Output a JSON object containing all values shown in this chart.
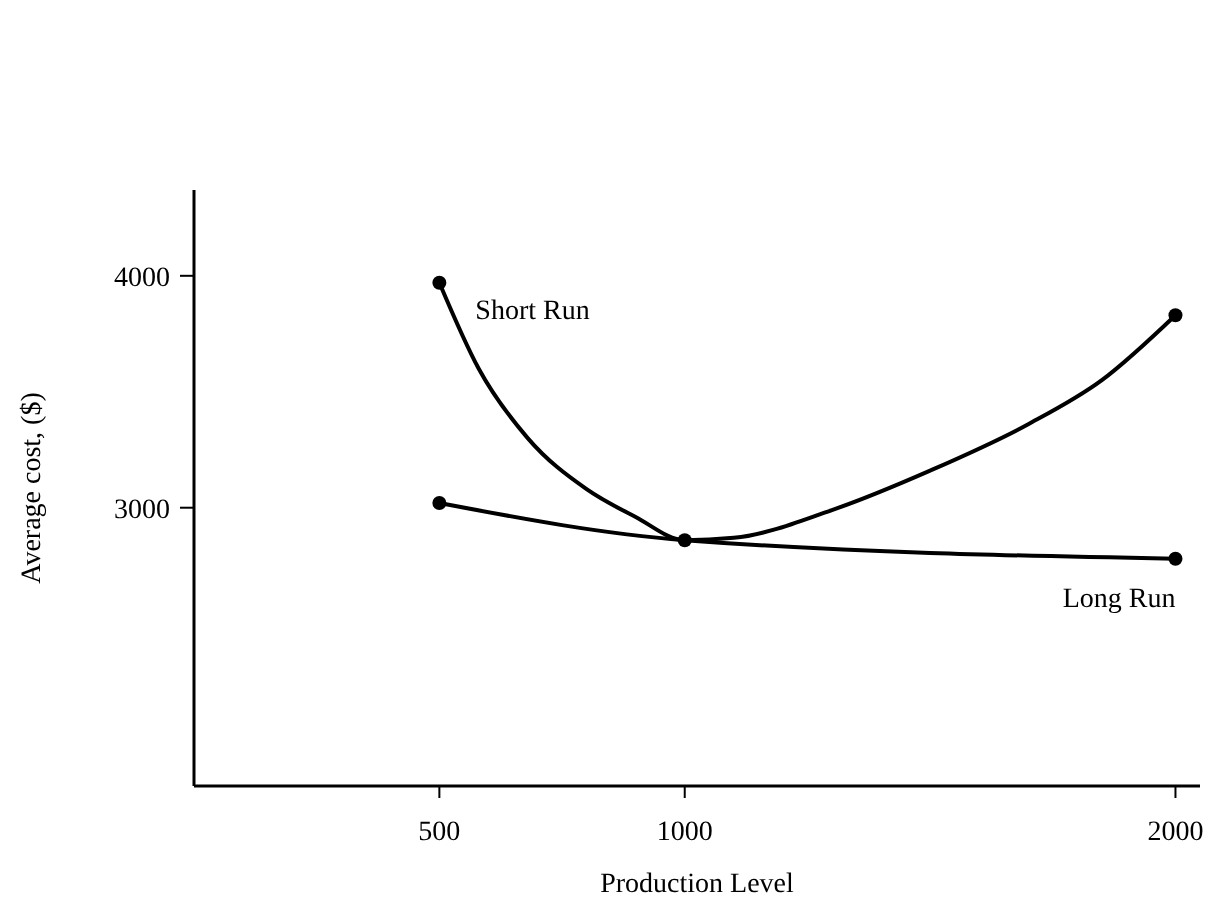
{
  "chart_data": {
    "type": "line",
    "xlabel": "Production Level",
    "ylabel": "Average cost, ($)",
    "xlim": [
      0,
      2050
    ],
    "ylim": [
      1800,
      4370
    ],
    "xticks": [
      500,
      1000,
      2000
    ],
    "yticks": [
      3000,
      4000
    ],
    "marker": "none",
    "grid": false,
    "series": [
      {
        "name": "Short Run",
        "color": "#000000",
        "x": [
          500,
          580,
          680,
          800,
          900,
          1000,
          1100,
          1300,
          1500,
          1700,
          1850,
          2000
        ],
        "values": [
          3970,
          3600,
          3300,
          3080,
          2960,
          2860,
          2870,
          2990,
          3160,
          3360,
          3550,
          3830
        ]
      },
      {
        "name": "Long Run",
        "color": "#000000",
        "x": [
          500,
          1000,
          2000
        ],
        "values": [
          3020,
          2860,
          2780
        ]
      },
      {
        "type": "scatter",
        "marker": "circle",
        "color": "#000000",
        "x": [
          500,
          1000,
          2000,
          500,
          2000
        ],
        "values": [
          3970,
          2860,
          3830,
          3020,
          2780
        ]
      }
    ]
  }
}
